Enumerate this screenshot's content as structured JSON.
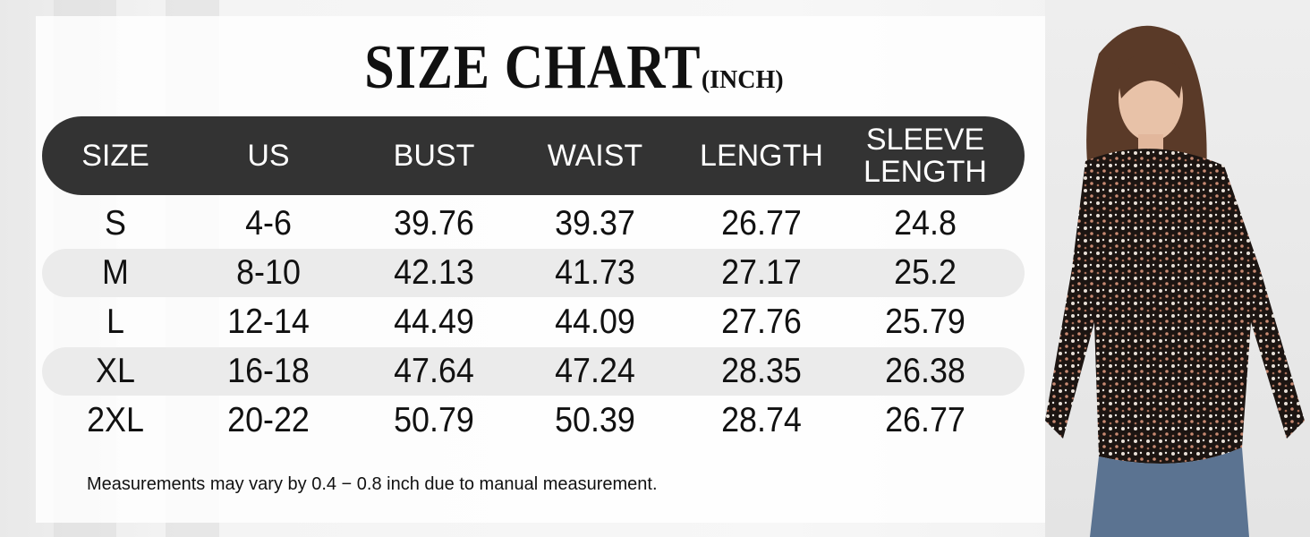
{
  "title": {
    "main": "SIZE CHART",
    "unit": "(INCH)"
  },
  "table": {
    "headers": [
      "SIZE",
      "US",
      "BUST",
      "WAIST",
      "LENGTH",
      "SLEEVE LENGTH"
    ],
    "rows": [
      [
        "S",
        "4-6",
        "39.76",
        "39.37",
        "26.77",
        "24.8"
      ],
      [
        "M",
        "8-10",
        "42.13",
        "41.73",
        "27.17",
        "25.2"
      ],
      [
        "L",
        "12-14",
        "44.49",
        "44.09",
        "27.76",
        "25.79"
      ],
      [
        "XL",
        "16-18",
        "47.64",
        "47.24",
        "28.35",
        "26.38"
      ],
      [
        "2XL",
        "20-22",
        "50.79",
        "50.39",
        "28.74",
        "26.77"
      ]
    ]
  },
  "note": "Measurements may vary by 0.4 − 0.8 inch due to manual measurement.",
  "colors": {
    "header_bg": "#333333",
    "stripe": "#ebebeb",
    "text": "#111111"
  },
  "image": {
    "subject": "model-photo"
  }
}
